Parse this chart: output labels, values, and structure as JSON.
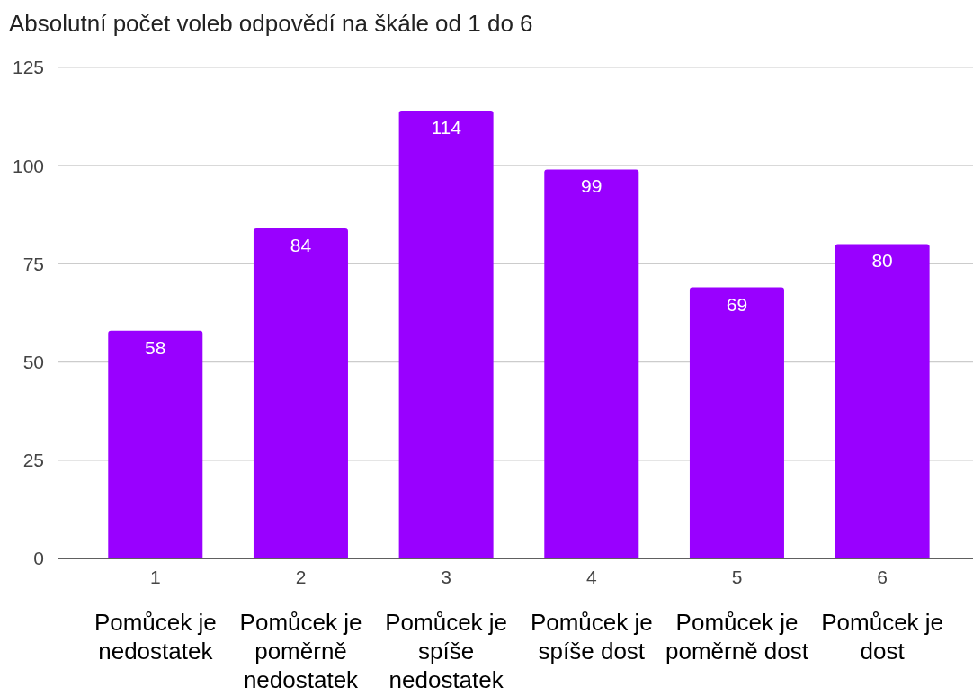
{
  "chart_data": {
    "type": "bar",
    "title": "Absolutní počet voleb odpovědí na škále od 1 do 6",
    "categories": [
      "1",
      "2",
      "3",
      "4",
      "5",
      "6"
    ],
    "values": [
      58,
      84,
      114,
      99,
      69,
      80
    ],
    "color": "#9900ff",
    "ylim": [
      0,
      125
    ],
    "yticks": [
      0,
      25,
      50,
      75,
      100,
      125
    ],
    "grid": "y",
    "data_labels": true,
    "annotations": [
      "Pomůcek je nedostatek",
      "Pomůcek je poměrně nedostatek",
      "Pomůcek je spíše nedostatek",
      "Pomůcek je spíše dost",
      "Pomůcek je poměrně dost",
      "Pomůcek je dost"
    ]
  }
}
